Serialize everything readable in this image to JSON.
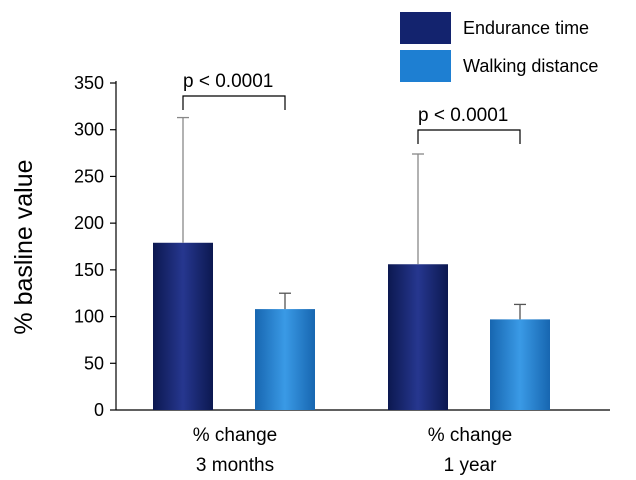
{
  "chart_data": {
    "type": "bar",
    "title": "",
    "xlabel": "",
    "ylabel": "% basline value",
    "ylim": [
      0,
      350
    ],
    "yticks": [
      0,
      50,
      100,
      150,
      200,
      250,
      300,
      350
    ],
    "grid": false,
    "legend_position": "top-right",
    "categories": [
      "% change\n3 months",
      "% change\n1 year"
    ],
    "series": [
      {
        "name": "Endurance time",
        "color": "#13236e",
        "values": [
          179,
          156
        ],
        "error": [
          134,
          118
        ]
      },
      {
        "name": "Walking distance",
        "color": "#1e7fd2",
        "values": [
          108,
          97
        ],
        "error": [
          17,
          16
        ]
      }
    ],
    "annotations": [
      {
        "text": "p < 0.0001",
        "category": 0
      },
      {
        "text": "p < 0.0001",
        "category": 1
      }
    ]
  }
}
